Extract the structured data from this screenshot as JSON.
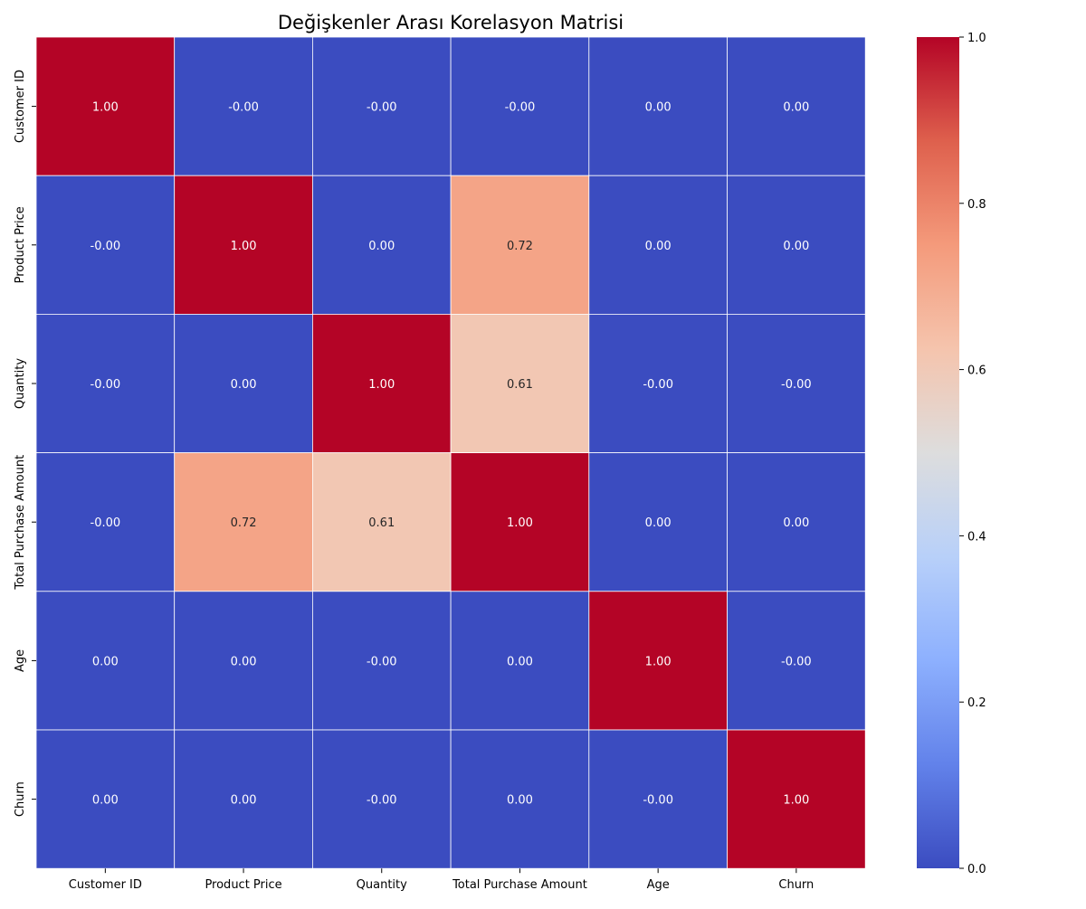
{
  "chart_data": {
    "type": "heatmap",
    "title": "Değişkenler Arası Korelasyon Matrisi",
    "x_categories": [
      "Customer ID",
      "Product Price",
      "Quantity",
      "Total Purchase Amount",
      "Age",
      "Churn"
    ],
    "y_categories": [
      "Customer ID",
      "Product Price",
      "Quantity",
      "Total Purchase Amount",
      "Age",
      "Churn"
    ],
    "values": [
      [
        1.0,
        -0.0,
        -0.0,
        -0.0,
        0.0,
        0.0
      ],
      [
        -0.0,
        1.0,
        0.0,
        0.72,
        0.0,
        0.0
      ],
      [
        -0.0,
        0.0,
        1.0,
        0.61,
        -0.0,
        -0.0
      ],
      [
        -0.0,
        0.72,
        0.61,
        1.0,
        0.0,
        0.0
      ],
      [
        0.0,
        0.0,
        -0.0,
        0.0,
        1.0,
        -0.0
      ],
      [
        0.0,
        0.0,
        -0.0,
        0.0,
        -0.0,
        1.0
      ]
    ],
    "cell_labels": [
      [
        "1.00",
        "-0.00",
        "-0.00",
        "-0.00",
        "0.00",
        "0.00"
      ],
      [
        "-0.00",
        "1.00",
        "0.00",
        "0.72",
        "0.00",
        "0.00"
      ],
      [
        "-0.00",
        "0.00",
        "1.00",
        "0.61",
        "-0.00",
        "-0.00"
      ],
      [
        "-0.00",
        "0.72",
        "0.61",
        "1.00",
        "0.00",
        "0.00"
      ],
      [
        "0.00",
        "0.00",
        "-0.00",
        "0.00",
        "1.00",
        "-0.00"
      ],
      [
        "0.00",
        "0.00",
        "-0.00",
        "0.00",
        "-0.00",
        "1.00"
      ]
    ],
    "colormap": "coolwarm",
    "color_range": [
      0.0,
      1.0
    ],
    "colorbar_ticks": [
      "0.0",
      "0.2",
      "0.4",
      "0.6",
      "0.8",
      "1.0"
    ],
    "colorbar_tick_values": [
      0.0,
      0.2,
      0.4,
      0.6,
      0.8,
      1.0
    ],
    "cell_border_color": "#ffffff"
  }
}
